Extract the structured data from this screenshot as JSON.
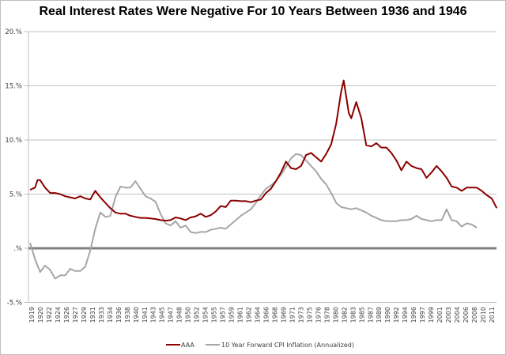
{
  "chart_data": {
    "type": "line",
    "title": "Real Interest Rates Were Negative For 10 Years Between 1936 and 1946",
    "xlabel": "",
    "ylabel": "",
    "ylim": [
      -5,
      20
    ],
    "xlim": [
      1919,
      2012
    ],
    "y_ticks": [
      20,
      15,
      10,
      5,
      0,
      -5
    ],
    "y_tick_labels": [
      "20.%",
      "15.%",
      "10.%",
      "5.%",
      ".%",
      "-5.%"
    ],
    "x_tick_labels": [
      "1919",
      "1920",
      "1922",
      "1924",
      "1926",
      "1927",
      "1929",
      "1931",
      "1933",
      "1934",
      "1936",
      "1938",
      "1940",
      "1941",
      "1943",
      "1945",
      "1947",
      "1948",
      "1950",
      "1952",
      "1954",
      "1955",
      "1957",
      "1959",
      "1961",
      "1962",
      "1964",
      "1966",
      "1968",
      "1969",
      "1971",
      "1973",
      "1975",
      "1976",
      "1978",
      "1980",
      "1982",
      "1983",
      "1985",
      "1987",
      "1989",
      "1990",
      "1992",
      "1994",
      "1996",
      "1997",
      "1999",
      "2001",
      "2003",
      "2004",
      "2006",
      "2008",
      "2010",
      "2011"
    ],
    "grid": true,
    "legend": "bottom",
    "series": [
      {
        "name": "AAA",
        "color": "#8b0000",
        "x": [
          1919,
          1920,
          1920.5,
          1921,
          1922,
          1923,
          1924,
          1925,
          1926,
          1927,
          1928,
          1929,
          1930,
          1931,
          1932,
          1933,
          1934,
          1935,
          1936,
          1937,
          1938,
          1939,
          1940,
          1941,
          1942,
          1943,
          1944,
          1945,
          1946,
          1947,
          1948,
          1949,
          1950,
          1951,
          1952,
          1953,
          1954,
          1955,
          1956,
          1957,
          1958,
          1959,
          1960,
          1961,
          1962,
          1963,
          1964,
          1965,
          1966,
          1967,
          1968,
          1969,
          1970,
          1971,
          1972,
          1973,
          1974,
          1975,
          1976,
          1977,
          1978,
          1979,
          1980,
          1980.5,
          1981,
          1981.5,
          1982,
          1982.5,
          1983,
          1984,
          1985,
          1986,
          1987,
          1988,
          1989,
          1990,
          1991,
          1992,
          1993,
          1994,
          1995,
          1996,
          1997,
          1998,
          1999,
          2000,
          2001,
          2002,
          2003,
          2004,
          2005,
          2006,
          2007,
          2008,
          2009,
          2010,
          2011,
          2012
        ],
        "y": [
          5.4,
          5.6,
          6.3,
          6.3,
          5.6,
          5.1,
          5.1,
          5.0,
          4.8,
          4.7,
          4.6,
          4.8,
          4.6,
          4.5,
          5.3,
          4.7,
          4.2,
          3.7,
          3.3,
          3.2,
          3.2,
          3.0,
          2.9,
          2.8,
          2.8,
          2.75,
          2.7,
          2.6,
          2.55,
          2.6,
          2.85,
          2.75,
          2.6,
          2.85,
          2.95,
          3.2,
          2.9,
          3.05,
          3.4,
          3.9,
          3.8,
          4.4,
          4.4,
          4.35,
          4.35,
          4.25,
          4.4,
          4.5,
          5.1,
          5.5,
          6.2,
          7.0,
          8.0,
          7.4,
          7.3,
          7.6,
          8.6,
          8.8,
          8.4,
          8.0,
          8.7,
          9.6,
          11.5,
          13.0,
          14.5,
          15.5,
          14.0,
          12.5,
          12.0,
          13.5,
          12.0,
          9.5,
          9.4,
          9.7,
          9.3,
          9.3,
          8.8,
          8.1,
          7.2,
          8.0,
          7.6,
          7.4,
          7.3,
          6.5,
          7.0,
          7.6,
          7.1,
          6.5,
          5.7,
          5.6,
          5.3,
          5.6,
          5.6,
          5.6,
          5.3,
          4.9,
          4.6,
          3.7
        ]
      },
      {
        "name": "10 Year Forward CPI Inflation (Annualized)",
        "color": "#a6a6a6",
        "x": [
          1919,
          1920,
          1921,
          1922,
          1923,
          1924,
          1925,
          1926,
          1927,
          1928,
          1929,
          1930,
          1931,
          1932,
          1933,
          1934,
          1935,
          1936,
          1937,
          1938,
          1939,
          1940,
          1941,
          1942,
          1943,
          1944,
          1945,
          1946,
          1947,
          1948,
          1949,
          1950,
          1951,
          1952,
          1953,
          1954,
          1955,
          1956,
          1957,
          1958,
          1959,
          1960,
          1961,
          1962,
          1963,
          1964,
          1965,
          1966,
          1967,
          1968,
          1969,
          1970,
          1971,
          1972,
          1973,
          1974,
          1975,
          1976,
          1977,
          1978,
          1979,
          1980,
          1981,
          1982,
          1983,
          1984,
          1985,
          1986,
          1987,
          1988,
          1989,
          1990,
          1991,
          1992,
          1993,
          1994,
          1995,
          1996,
          1997,
          1998,
          1999,
          2000,
          2001,
          2002,
          2003,
          2004,
          2005,
          2006,
          2007,
          2008
        ],
        "y": [
          0.5,
          -1.0,
          -2.2,
          -1.6,
          -2.0,
          -2.8,
          -2.5,
          -2.5,
          -1.9,
          -2.1,
          -2.1,
          -1.7,
          -0.2,
          1.8,
          3.3,
          2.9,
          3.0,
          4.7,
          5.7,
          5.6,
          5.6,
          6.2,
          5.5,
          4.8,
          4.6,
          4.3,
          3.2,
          2.3,
          2.1,
          2.5,
          1.9,
          2.1,
          1.5,
          1.4,
          1.5,
          1.5,
          1.7,
          1.8,
          1.9,
          1.8,
          2.2,
          2.6,
          3.0,
          3.3,
          3.6,
          4.2,
          4.9,
          5.5,
          5.8,
          6.2,
          6.8,
          7.5,
          8.3,
          8.7,
          8.6,
          8.1,
          7.6,
          7.1,
          6.4,
          5.9,
          5.1,
          4.2,
          3.8,
          3.7,
          3.6,
          3.7,
          3.5,
          3.3,
          3.0,
          2.8,
          2.6,
          2.5,
          2.5,
          2.5,
          2.6,
          2.6,
          2.7,
          3.0,
          2.7,
          2.6,
          2.5,
          2.6,
          2.6,
          3.6,
          2.6,
          2.5,
          2.0,
          2.3,
          2.2,
          1.9
        ]
      }
    ]
  }
}
